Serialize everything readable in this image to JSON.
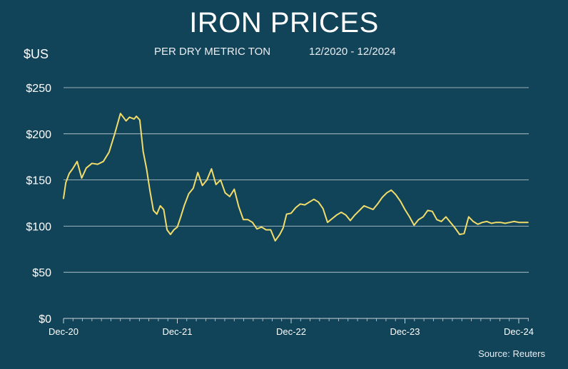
{
  "chart_data": {
    "type": "line",
    "title": "IRON PRICES",
    "subtitle_left": "PER DRY METRIC TON",
    "subtitle_right": "12/2020 - 12/2024",
    "ylabel": "$US",
    "source": "Source: Reuters",
    "grid": true,
    "ylim": [
      0,
      250
    ],
    "yticks": [
      0,
      50,
      100,
      150,
      200,
      250
    ],
    "ytick_labels": [
      "$0",
      "$50",
      "$100",
      "$150",
      "$200",
      "$250"
    ],
    "xticks": [
      "Dec-20",
      "Dec-21",
      "Dec-22",
      "Dec-23",
      "Dec-24"
    ],
    "series_color": "#f2dc6a",
    "series": [
      {
        "x": [
          0.0,
          0.02,
          0.05,
          0.08,
          0.12,
          0.16,
          0.2,
          0.25,
          0.3,
          0.35,
          0.4,
          0.45,
          0.5,
          0.55,
          0.58,
          0.62,
          0.64,
          0.67,
          0.7,
          0.73,
          0.76,
          0.79,
          0.82,
          0.85,
          0.88,
          0.91,
          0.94,
          0.97,
          1.0,
          1.03,
          1.06,
          1.1,
          1.14,
          1.18,
          1.22,
          1.26,
          1.3,
          1.34,
          1.38,
          1.42,
          1.46,
          1.5,
          1.54,
          1.58,
          1.62,
          1.66,
          1.7,
          1.74,
          1.78,
          1.82,
          1.86,
          1.9,
          1.93,
          1.96,
          2.0,
          2.04,
          2.08,
          2.12,
          2.16,
          2.2,
          2.24,
          2.28,
          2.32,
          2.36,
          2.4,
          2.44,
          2.48,
          2.52,
          2.56,
          2.6,
          2.64,
          2.68,
          2.72,
          2.76,
          2.8,
          2.84,
          2.88,
          2.92,
          2.96,
          3.0,
          3.04,
          3.08,
          3.12,
          3.16,
          3.2,
          3.24,
          3.28,
          3.32,
          3.36,
          3.4,
          3.44,
          3.48,
          3.52,
          3.56,
          3.6,
          3.64,
          3.68,
          3.72,
          3.76,
          3.8,
          3.84,
          3.88,
          3.92,
          3.96,
          4.0,
          4.04,
          4.08
        ],
        "y": [
          130,
          147,
          157,
          162,
          170,
          152,
          163,
          168,
          167,
          170,
          180,
          200,
          222,
          214,
          218,
          216,
          219,
          215,
          181,
          162,
          138,
          117,
          113,
          122,
          118,
          96,
          91,
          96,
          99,
          110,
          122,
          135,
          141,
          158,
          144,
          150,
          162,
          145,
          150,
          136,
          132,
          140,
          121,
          107,
          107,
          104,
          97,
          99,
          96,
          96,
          84,
          91,
          98,
          113,
          114,
          120,
          124,
          123,
          126,
          129,
          126,
          119,
          104,
          108,
          112,
          115,
          112,
          106,
          112,
          117,
          122,
          120,
          118,
          124,
          131,
          136,
          139,
          134,
          127,
          118,
          110,
          101,
          107,
          110,
          117,
          116,
          107,
          105,
          110,
          104,
          98,
          91,
          92,
          110,
          105,
          102,
          104,
          105,
          103,
          104,
          104,
          103,
          104,
          105,
          104,
          104,
          104
        ]
      }
    ]
  }
}
